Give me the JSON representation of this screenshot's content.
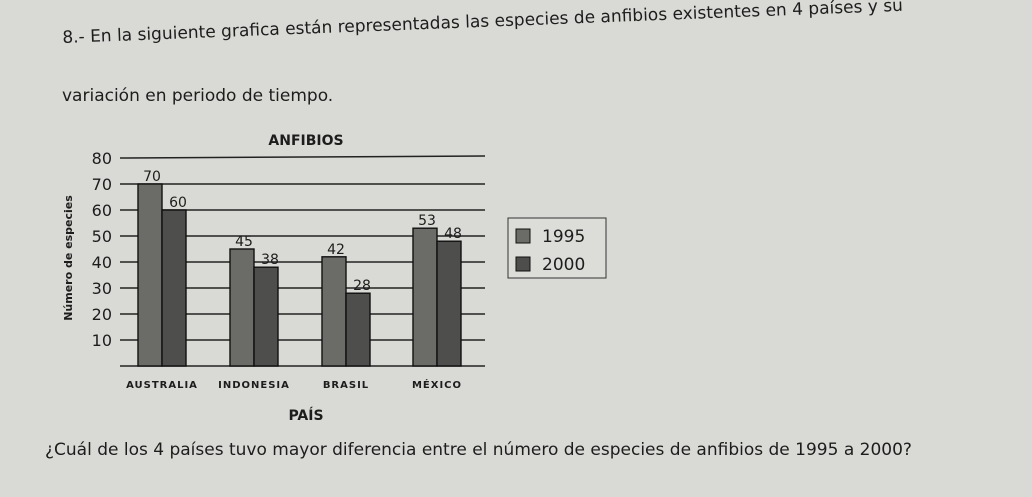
{
  "question": {
    "line1": "8.- En la siguiente grafica están representadas las especies de anfibios existentes en 4 países y su",
    "line2": "variación en periodo de tiempo.",
    "prompt": "¿Cuál de los 4 países tuvo mayor diferencia entre el número de especies de anfibios de 1995 a 2000?"
  },
  "colors": {
    "background": "#d9dad5",
    "bar_1995": "#6b6b68",
    "bar_2000": "#4e4e4c",
    "gridline": "#222222"
  },
  "chart_data": {
    "type": "bar",
    "title": "ANFIBIOS",
    "xlabel": "PAÍS",
    "ylabel": "Número de especies",
    "categories": [
      "AUSTRALIA",
      "INDONESIA",
      "BRASIL",
      "MÉXICO"
    ],
    "series": [
      {
        "name": "1995",
        "values": [
          70,
          45,
          42,
          53
        ]
      },
      {
        "name": "2000",
        "values": [
          60,
          38,
          28,
          48
        ]
      }
    ],
    "yticks": [
      10,
      20,
      30,
      40,
      50,
      60,
      70,
      80
    ],
    "ylim": [
      0,
      80
    ],
    "grid": true,
    "legend": "right"
  }
}
